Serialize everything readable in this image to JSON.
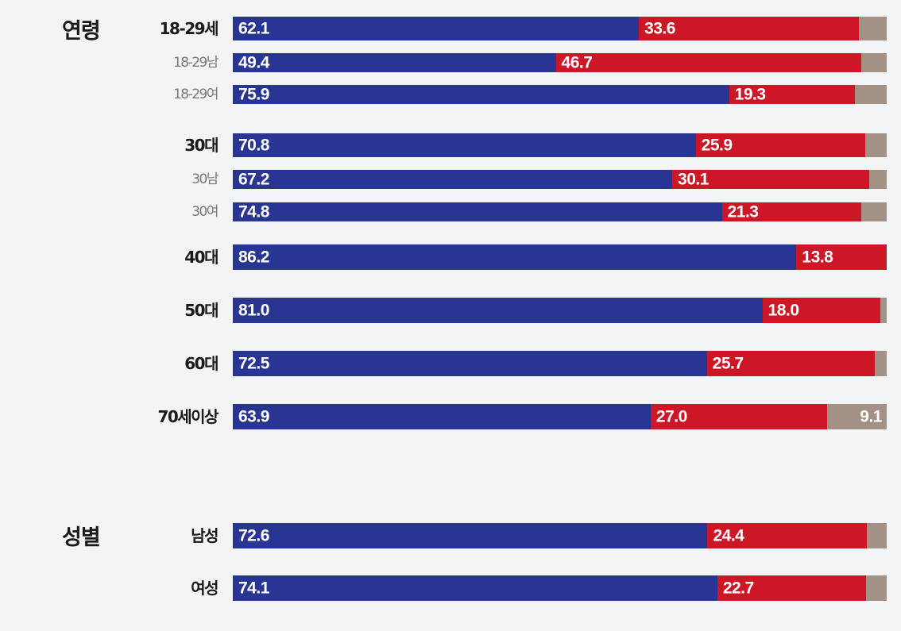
{
  "colors": {
    "blue": "#283593",
    "red": "#cd1727",
    "gray": "#a49186"
  },
  "chart_data": {
    "type": "bar",
    "stacked": true,
    "orientation": "horizontal",
    "groups": [
      {
        "label": "연령",
        "rows": [
          {
            "label": "18-29세",
            "style": "main",
            "values": [
              62.1,
              33.6,
              4.3
            ]
          },
          {
            "label": "18-29남",
            "style": "sub",
            "values": [
              49.4,
              46.7,
              3.9
            ]
          },
          {
            "label": "18-29여",
            "style": "sub",
            "values": [
              75.9,
              19.3,
              4.8
            ]
          },
          {
            "label": "30대",
            "style": "main",
            "values": [
              70.8,
              25.9,
              3.3
            ]
          },
          {
            "label": "30남",
            "style": "sub",
            "values": [
              67.2,
              30.1,
              2.7
            ]
          },
          {
            "label": "30여",
            "style": "sub",
            "values": [
              74.8,
              21.3,
              3.9
            ]
          },
          {
            "label": "40대",
            "style": "main",
            "values": [
              86.2,
              13.8,
              0
            ]
          },
          {
            "label": "50대",
            "style": "main",
            "values": [
              81.0,
              18.0,
              1.0
            ]
          },
          {
            "label": "60대",
            "style": "main",
            "values": [
              72.5,
              25.7,
              1.8
            ]
          },
          {
            "label": "70세이상",
            "style": "main",
            "values": [
              63.9,
              27.0,
              9.1
            ],
            "show_third_label": true
          }
        ]
      },
      {
        "label": "성별",
        "rows": [
          {
            "label": "남성",
            "style": "main",
            "values": [
              72.6,
              24.4,
              3.0
            ]
          },
          {
            "label": "여성",
            "style": "main",
            "values": [
              74.1,
              22.7,
              3.2
            ]
          }
        ]
      }
    ],
    "xlim": [
      0,
      100
    ]
  }
}
